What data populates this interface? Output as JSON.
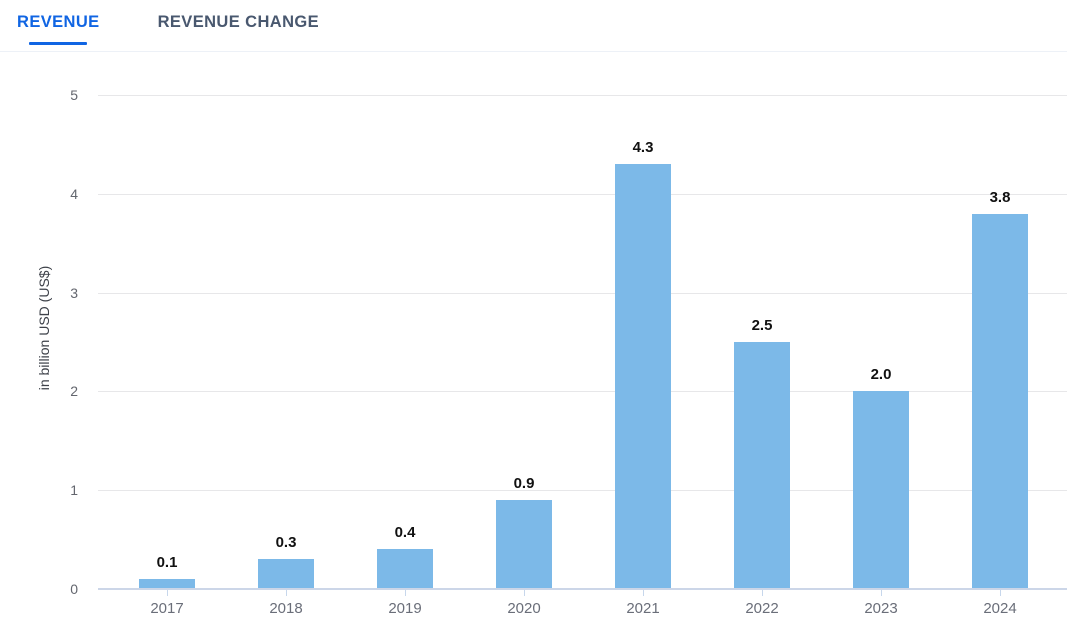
{
  "tabs": [
    {
      "label": "REVENUE",
      "active": true
    },
    {
      "label": "REVENUE CHANGE",
      "active": false
    }
  ],
  "colors": {
    "bar": "#7cb9e8",
    "tab_active": "#1065e3",
    "tab_inactive": "#49586f",
    "axis_line": "#ccd6e8",
    "x_tick": "#c7d7ec",
    "gridline": "#e7e7e9",
    "tick_label": "#63666e",
    "x_label": "#6a6e79",
    "value_label": "#111111",
    "axis_title": "#3d4149",
    "separator": "#edf1f7"
  },
  "chart_data": {
    "type": "bar",
    "categories": [
      "2017",
      "2018",
      "2019",
      "2020",
      "2021",
      "2022",
      "2023",
      "2024"
    ],
    "values": [
      0.1,
      0.3,
      0.4,
      0.9,
      4.3,
      2.5,
      2.0,
      3.8
    ],
    "value_labels": [
      "0.1",
      "0.3",
      "0.4",
      "0.9",
      "4.3",
      "2.5",
      "2.0",
      "3.8"
    ],
    "title": "",
    "xlabel": "",
    "ylabel": "in billion USD (US$)",
    "ylim": [
      0,
      5
    ],
    "yticks": [
      0,
      1,
      2,
      3,
      4,
      5
    ],
    "grid": true,
    "legend": false
  }
}
